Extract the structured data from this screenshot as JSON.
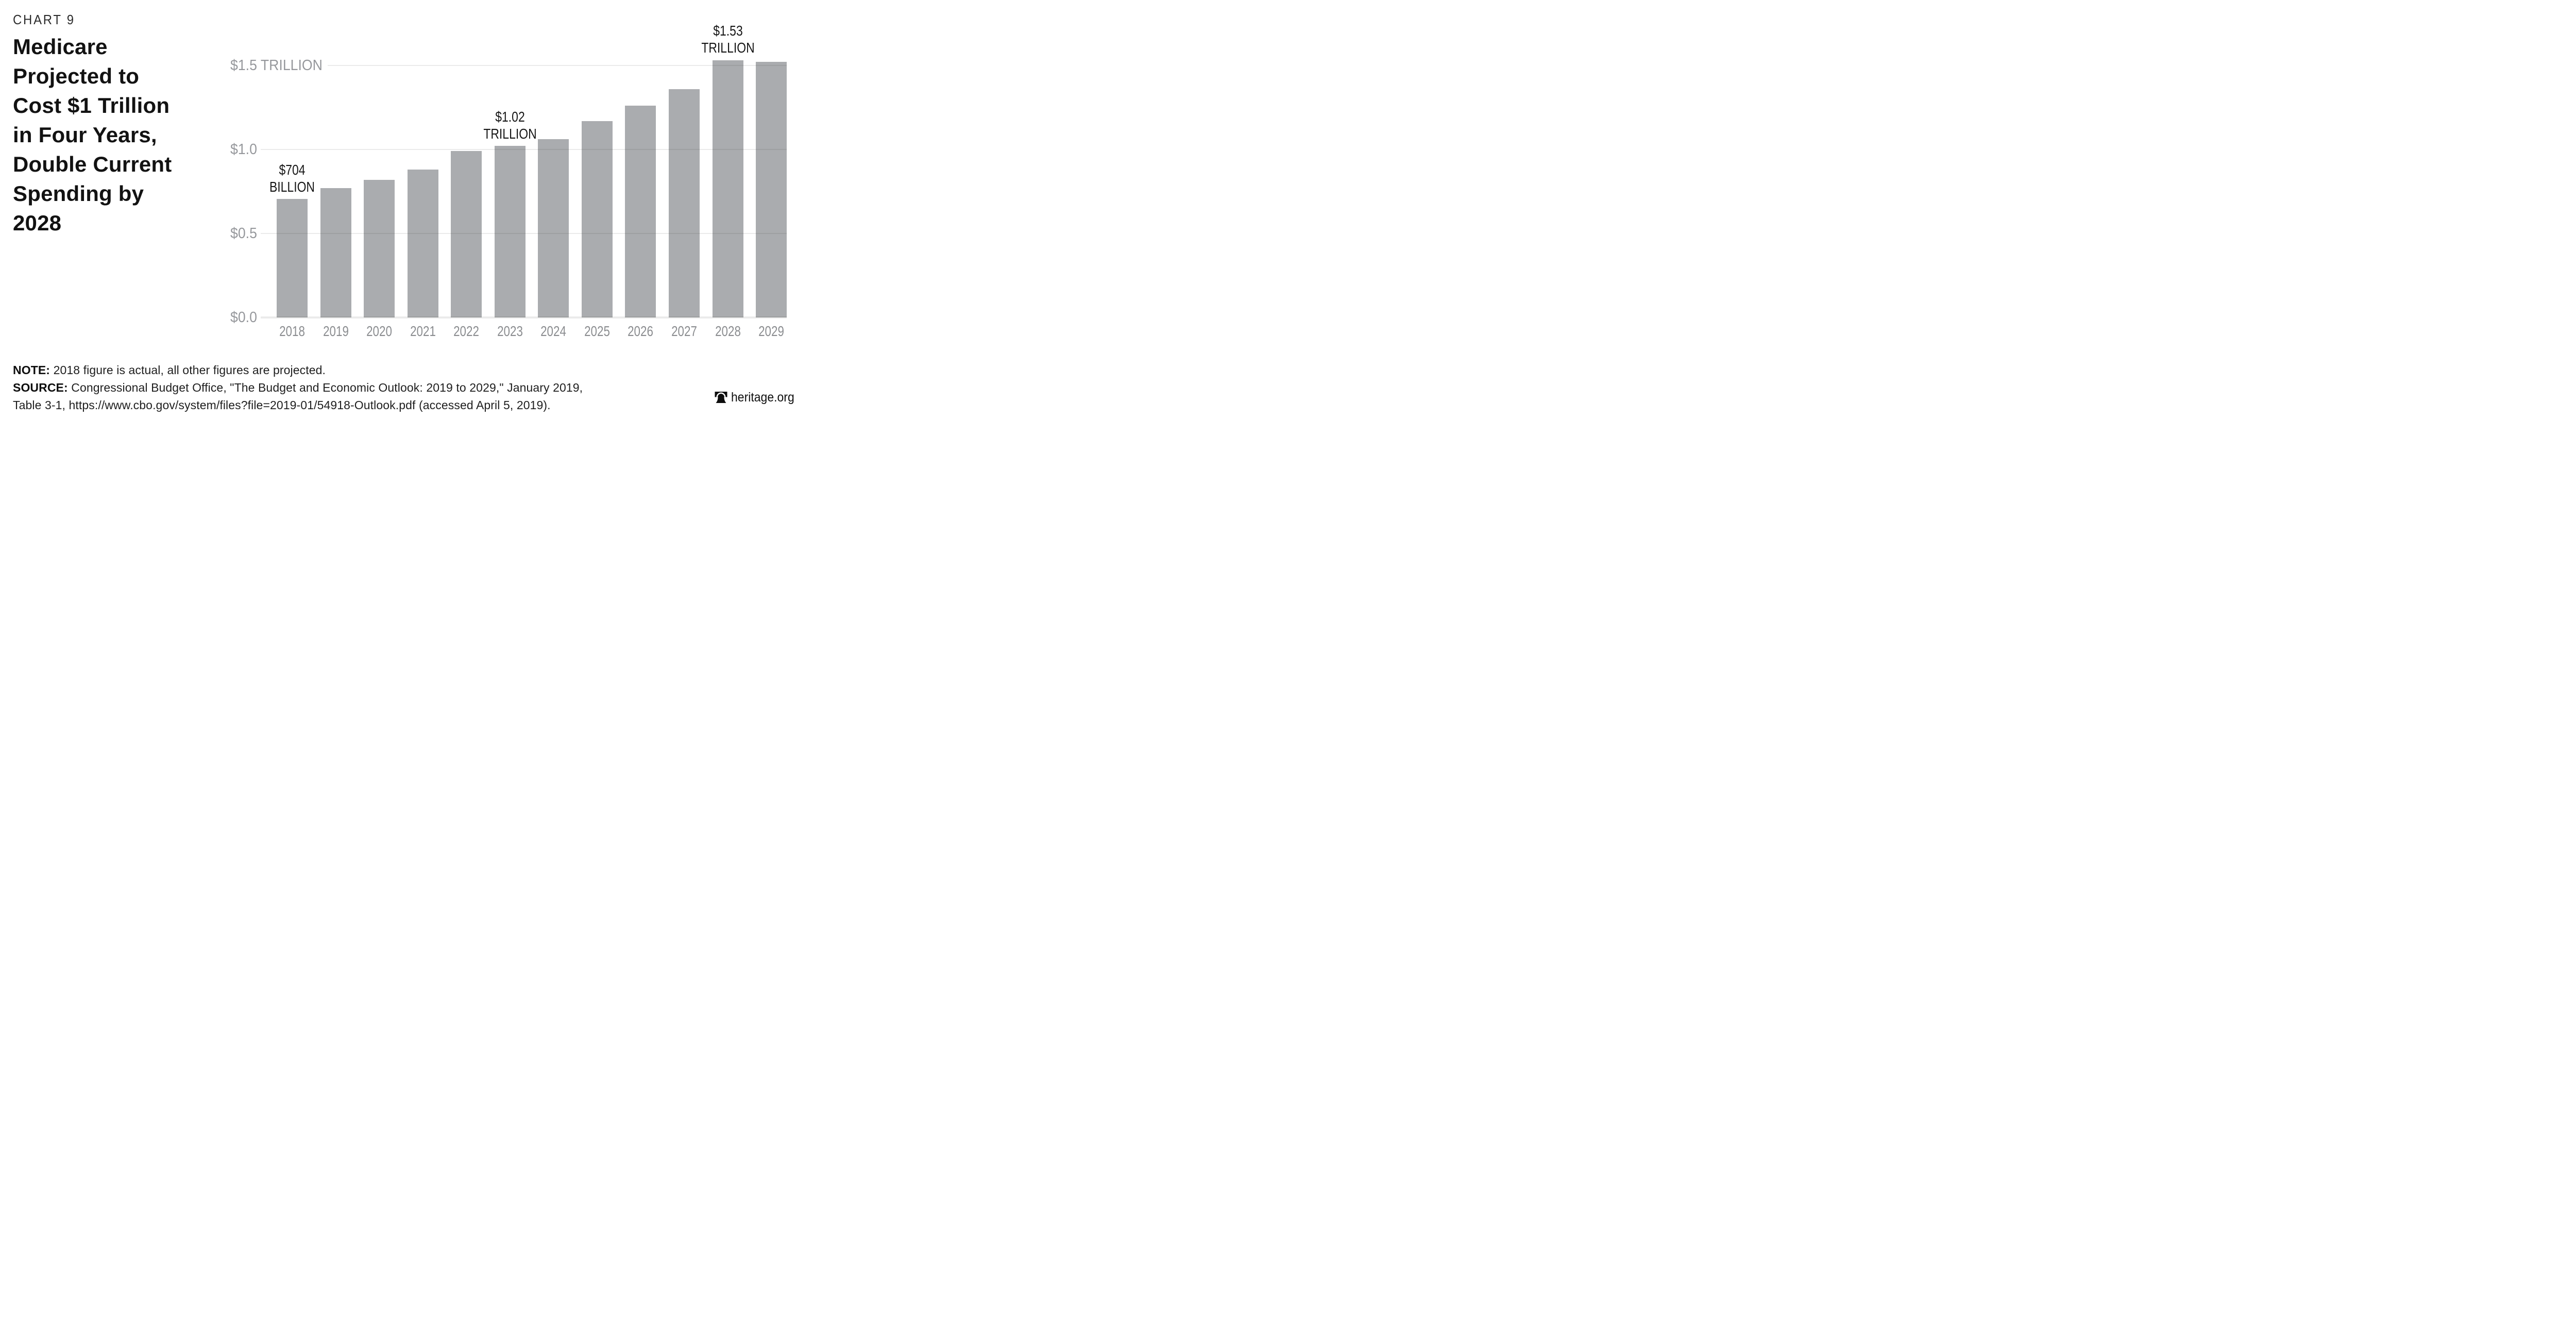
{
  "page": {
    "eyebrow": "CHART 9",
    "title_lines": [
      "Medicare",
      "Projected to",
      "Cost $1 Trillion",
      "in Four Years,",
      "Double Current",
      "Spending by",
      "2028"
    ]
  },
  "chart_data": {
    "type": "bar",
    "title": "Medicare Projected to Cost $1 Trillion in Four Years, Double Current Spending by 2028",
    "unit": "trillions of dollars",
    "categories": [
      "2018",
      "2019",
      "2020",
      "2021",
      "2022",
      "2023",
      "2024",
      "2025",
      "2026",
      "2027",
      "2028",
      "2029"
    ],
    "values": [
      0.704,
      0.77,
      0.82,
      0.88,
      0.99,
      1.02,
      1.06,
      1.17,
      1.26,
      1.36,
      1.53,
      1.52
    ],
    "ylim": [
      0,
      1.6
    ],
    "yticks": [
      {
        "value": 0.0,
        "label": "$0.0"
      },
      {
        "value": 0.5,
        "label": "$0.5"
      },
      {
        "value": 1.0,
        "label": "$1.0"
      },
      {
        "value": 1.5,
        "label": "$1.5 TRILLION"
      }
    ],
    "grid": true,
    "legend": false,
    "bar_color": "#aaacaf",
    "annotations": [
      {
        "index": 0,
        "category": "2018",
        "lines": [
          "$704",
          "BILLION"
        ]
      },
      {
        "index": 5,
        "category": "2023",
        "lines": [
          "$1.02",
          "TRILLION"
        ]
      },
      {
        "index": 10,
        "category": "2028",
        "lines": [
          "$1.53",
          "TRILLION"
        ]
      }
    ]
  },
  "footer": {
    "note_label": "NOTE:",
    "note_text": "2018 figure is actual, all other figures are projected.",
    "source_label": "SOURCE:",
    "source_text_line1": "Congressional Budget Office, \"The Budget and Economic Outlook: 2019 to 2029,\" January 2019,",
    "source_text_line2": "Table 3-1, https://www.cbo.gov/system/files?file=2019-01/54918-Outlook.pdf (accessed April 5, 2019).",
    "brand": "heritage.org"
  },
  "colors": {
    "bar": "#aaacaf",
    "gridline": "rgba(20,20,20,0.085)",
    "y_axis_label": "#96989c",
    "x_axis_label": "#8b8d90",
    "annotation_text": "#161616",
    "title_text": "#121212"
  }
}
